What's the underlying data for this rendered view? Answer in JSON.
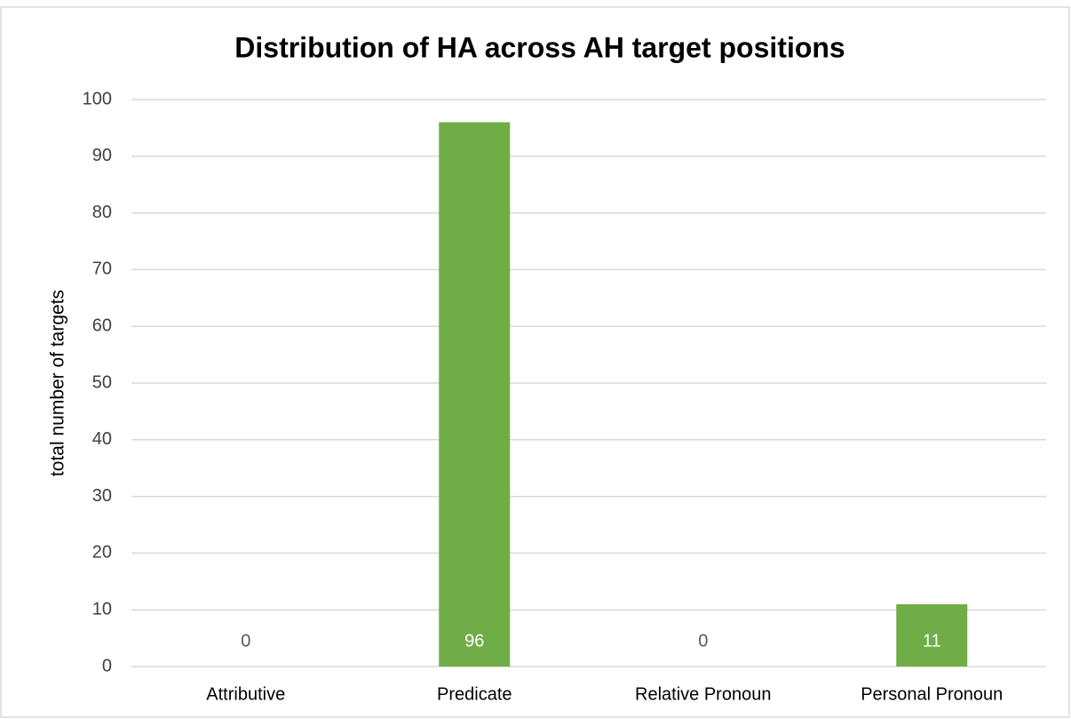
{
  "chart_data": {
    "type": "bar",
    "title": "Distribution of HA across AH target positions",
    "y_label": "total number of targets",
    "categories": [
      "Attributive",
      "Predicate",
      "Relative Pronoun",
      "Personal Pronoun"
    ],
    "values": [
      0,
      96,
      0,
      11
    ],
    "color": "#70ad47",
    "ylim": [
      0,
      100
    ],
    "yticks": [
      0,
      10,
      20,
      30,
      40,
      50,
      60,
      70,
      80,
      90,
      100
    ],
    "grid": true,
    "data_labels": true
  }
}
